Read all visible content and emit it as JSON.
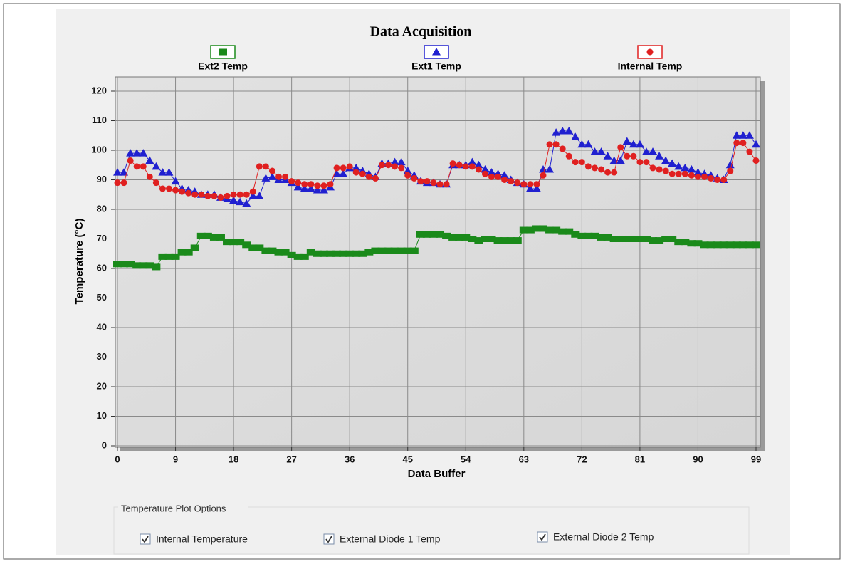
{
  "chart_data": {
    "type": "line",
    "title": "Data Acquisition",
    "xlabel": "Data Buffer",
    "ylabel": "Temperature (°C)",
    "x": [
      0,
      1,
      2,
      3,
      4,
      5,
      6,
      7,
      8,
      9,
      10,
      11,
      12,
      13,
      14,
      15,
      16,
      17,
      18,
      19,
      20,
      21,
      22,
      23,
      24,
      25,
      26,
      27,
      28,
      29,
      30,
      31,
      32,
      33,
      34,
      35,
      36,
      37,
      38,
      39,
      40,
      41,
      42,
      43,
      44,
      45,
      46,
      47,
      48,
      49,
      50,
      51,
      52,
      53,
      54,
      55,
      56,
      57,
      58,
      59,
      60,
      61,
      62,
      63,
      64,
      65,
      66,
      67,
      68,
      69,
      70,
      71,
      72,
      73,
      74,
      75,
      76,
      77,
      78,
      79,
      80,
      81,
      82,
      83,
      84,
      85,
      86,
      87,
      88,
      89,
      90,
      91,
      92,
      93,
      94,
      95,
      96,
      97,
      98,
      99
    ],
    "xlim": [
      0,
      99
    ],
    "xticks": [
      0,
      9,
      18,
      27,
      36,
      45,
      54,
      63,
      72,
      81,
      90,
      99
    ],
    "ylim": [
      0,
      120
    ],
    "yticks": [
      0,
      10,
      20,
      30,
      40,
      50,
      60,
      70,
      80,
      90,
      100,
      110,
      120
    ],
    "grid": true,
    "legend": "top",
    "series": [
      {
        "name": "Ext2 Temp",
        "color": "#1a8a1a",
        "marker": "square",
        "values": [
          61.5,
          61.5,
          61.5,
          61,
          61,
          61,
          60.5,
          64,
          64,
          64,
          65.5,
          65.5,
          67,
          71,
          71,
          70.5,
          70.5,
          69,
          69,
          69,
          68,
          67,
          67,
          66,
          66,
          65.5,
          65.5,
          64.5,
          64,
          64,
          65.5,
          65,
          65,
          65,
          65,
          65,
          65,
          65,
          65,
          65.5,
          66,
          66,
          66,
          66,
          66,
          66,
          66,
          71.5,
          71.5,
          71.5,
          71.5,
          71,
          70.5,
          70.5,
          70.5,
          70,
          69.5,
          70,
          70,
          69.5,
          69.5,
          69.5,
          69.5,
          73,
          73,
          73.5,
          73.5,
          73,
          73,
          72.5,
          72.5,
          71.5,
          71,
          71,
          71,
          70.5,
          70.5,
          70,
          70,
          70,
          70,
          70,
          70,
          69.5,
          69.5,
          70,
          70,
          69,
          69,
          68.5,
          68.5,
          68,
          68,
          68,
          68,
          68,
          68,
          68,
          68,
          68
        ]
      },
      {
        "name": "Ext1 Temp",
        "color": "#2020d0",
        "marker": "triangle",
        "values": [
          92.5,
          92.5,
          99,
          99,
          99,
          96.5,
          94.5,
          92.5,
          92.5,
          89.5,
          87,
          86.5,
          86,
          85,
          85,
          85,
          84,
          83.5,
          83,
          82.5,
          82,
          84.5,
          84.5,
          90.5,
          91,
          90,
          90,
          89,
          87.5,
          87,
          87,
          86.5,
          86.5,
          87.5,
          92,
          92,
          94,
          94,
          93,
          92,
          91,
          95.5,
          95.5,
          96,
          96,
          93,
          91.5,
          89.5,
          89,
          89,
          88.5,
          88.5,
          95,
          95,
          95,
          96,
          95,
          93.5,
          92.5,
          92,
          91.5,
          90,
          89,
          88.5,
          87,
          87,
          93.5,
          93.5,
          106,
          106.5,
          106.5,
          104.5,
          102,
          102,
          99.5,
          99.5,
          98,
          96.5,
          96.5,
          103,
          102,
          102,
          99.5,
          99.5,
          98,
          96.5,
          95.5,
          94.5,
          94,
          93.5,
          92.5,
          92,
          91.5,
          90.5,
          90,
          95,
          105,
          105,
          105,
          102
        ]
      },
      {
        "name": "Internal Temp",
        "color": "#e02020",
        "marker": "circle",
        "values": [
          89,
          89,
          96.5,
          94.5,
          94.5,
          91,
          89,
          87,
          87,
          86.5,
          86,
          85.5,
          85,
          85,
          84.5,
          84.5,
          84,
          84.5,
          85,
          85,
          85,
          86,
          94.5,
          94.5,
          93,
          91,
          91,
          89.5,
          89,
          88.5,
          88.5,
          88,
          88,
          88.5,
          94,
          94,
          94.5,
          92.5,
          92,
          91,
          90.5,
          95,
          95,
          94.5,
          94,
          91.5,
          90.5,
          89.5,
          89.5,
          89,
          88.5,
          88.5,
          95.5,
          95,
          94.5,
          94.5,
          93.5,
          92,
          91,
          91,
          90,
          89.5,
          89,
          88.5,
          88.5,
          88.5,
          91.5,
          102,
          102,
          100.5,
          98,
          96,
          96,
          94.5,
          94,
          93.5,
          92.5,
          92.5,
          101,
          98,
          98,
          96,
          96,
          94,
          93.5,
          93,
          92,
          92,
          92,
          91.5,
          91,
          91,
          90.5,
          90,
          90,
          93,
          102.5,
          102.5,
          99.5,
          96.5
        ]
      }
    ]
  },
  "options": {
    "title": "Temperature Plot Options",
    "checkboxes": [
      {
        "label": "Internal Temperature",
        "checked": true
      },
      {
        "label": "External Diode 1 Temp",
        "checked": true
      },
      {
        "label": "External Diode 2 Temp",
        "checked": true
      }
    ]
  }
}
